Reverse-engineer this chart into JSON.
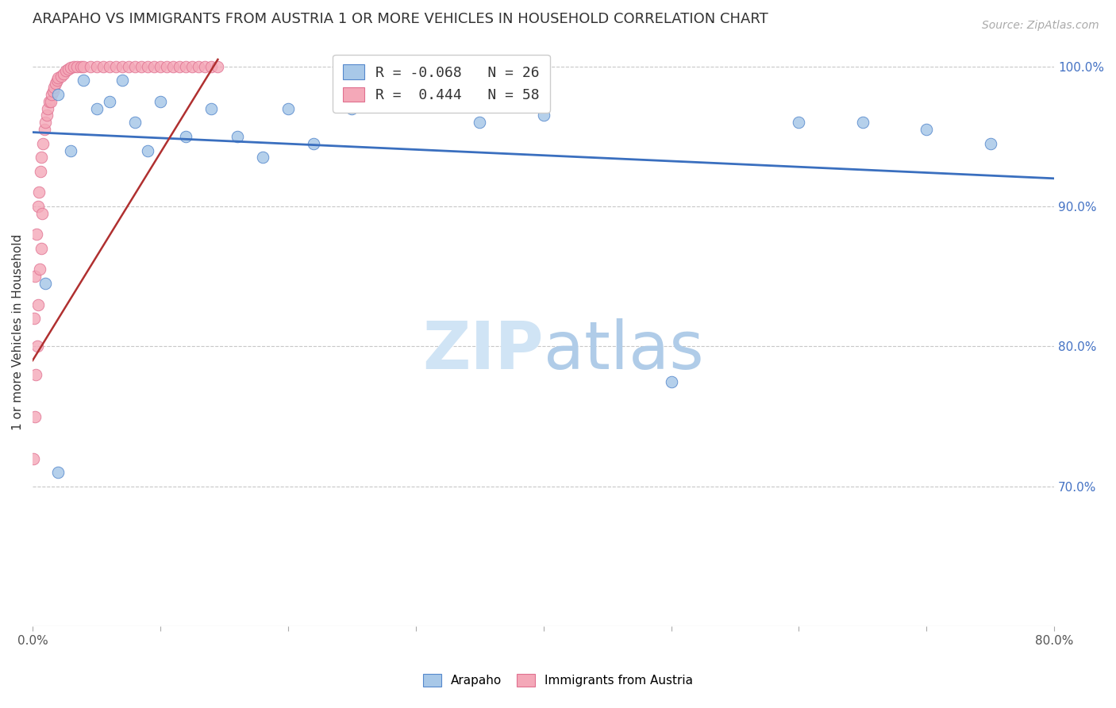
{
  "title": "ARAPAHO VS IMMIGRANTS FROM AUSTRIA 1 OR MORE VEHICLES IN HOUSEHOLD CORRELATION CHART",
  "source": "Source: ZipAtlas.com",
  "ylabel": "1 or more Vehicles in Household",
  "xlim": [
    0.0,
    0.8
  ],
  "ylim": [
    0.6,
    1.02
  ],
  "yticks": [
    0.7,
    0.8,
    0.9,
    1.0
  ],
  "ytick_labels": [
    "70.0%",
    "80.0%",
    "90.0%",
    "100.0%"
  ],
  "xticks": [
    0.0,
    0.1,
    0.2,
    0.3,
    0.4,
    0.5,
    0.6,
    0.7,
    0.8
  ],
  "xtick_labels": [
    "0.0%",
    "",
    "",
    "",
    "",
    "",
    "",
    "",
    "80.0%"
  ],
  "legend_label_blue": "R = -0.068   N = 26",
  "legend_label_pink": "R =  0.444   N = 58",
  "blue_face": "#a8c8e8",
  "blue_edge": "#5588cc",
  "pink_face": "#f4a8b8",
  "pink_edge": "#e07090",
  "line_blue_color": "#3a6fbf",
  "line_pink_color": "#b03030",
  "arapaho_x": [
    0.01,
    0.02,
    0.03,
    0.04,
    0.05,
    0.06,
    0.07,
    0.08,
    0.09,
    0.1,
    0.12,
    0.14,
    0.16,
    0.18,
    0.2,
    0.22,
    0.25,
    0.3,
    0.35,
    0.4,
    0.5,
    0.6,
    0.65,
    0.7,
    0.75,
    0.02
  ],
  "arapaho_y": [
    0.845,
    0.98,
    0.94,
    0.99,
    0.97,
    0.975,
    0.99,
    0.96,
    0.94,
    0.975,
    0.95,
    0.97,
    0.95,
    0.935,
    0.97,
    0.945,
    0.97,
    0.975,
    0.96,
    0.965,
    0.775,
    0.96,
    0.96,
    0.955,
    0.945,
    0.71
  ],
  "austria_x": [
    0.001,
    0.002,
    0.003,
    0.004,
    0.005,
    0.006,
    0.007,
    0.008,
    0.009,
    0.01,
    0.011,
    0.012,
    0.013,
    0.014,
    0.015,
    0.016,
    0.017,
    0.018,
    0.019,
    0.02,
    0.022,
    0.024,
    0.026,
    0.028,
    0.03,
    0.032,
    0.035,
    0.038,
    0.04,
    0.045,
    0.05,
    0.055,
    0.06,
    0.065,
    0.07,
    0.075,
    0.08,
    0.085,
    0.09,
    0.095,
    0.1,
    0.105,
    0.11,
    0.115,
    0.12,
    0.125,
    0.13,
    0.135,
    0.14,
    0.145,
    0.0005,
    0.0015,
    0.0025,
    0.0035,
    0.0045,
    0.0055,
    0.0065,
    0.0075
  ],
  "austria_y": [
    0.82,
    0.85,
    0.88,
    0.9,
    0.91,
    0.925,
    0.935,
    0.945,
    0.955,
    0.96,
    0.965,
    0.97,
    0.975,
    0.975,
    0.98,
    0.982,
    0.985,
    0.988,
    0.99,
    0.992,
    0.993,
    0.995,
    0.997,
    0.998,
    0.999,
    1.0,
    1.0,
    1.0,
    1.0,
    1.0,
    1.0,
    1.0,
    1.0,
    1.0,
    1.0,
    1.0,
    1.0,
    1.0,
    1.0,
    1.0,
    1.0,
    1.0,
    1.0,
    1.0,
    1.0,
    1.0,
    1.0,
    1.0,
    1.0,
    1.0,
    0.72,
    0.75,
    0.78,
    0.8,
    0.83,
    0.855,
    0.87,
    0.895
  ],
  "blue_line_x": [
    0.0,
    0.8
  ],
  "blue_line_y": [
    0.953,
    0.92
  ],
  "pink_line_x": [
    0.0,
    0.145
  ],
  "pink_line_y": [
    0.79,
    1.005
  ],
  "watermark_zip_color": "#d0e4f5",
  "watermark_atlas_color": "#b0cce8"
}
